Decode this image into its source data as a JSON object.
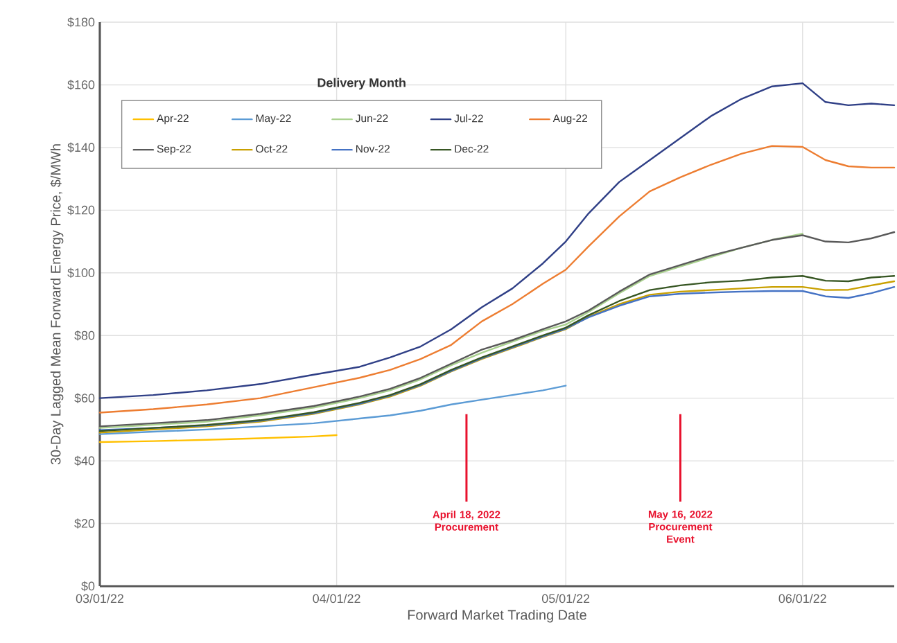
{
  "chart_data": {
    "type": "line",
    "xlabel": "Forward Market Trading Date",
    "ylabel": "30-Day Lagged Mean Forward Energy Price, $/MWh",
    "legend_title": "Delivery Month",
    "xlim": [
      "2022-03-01",
      "2022-06-13"
    ],
    "xticks": [
      {
        "value": "2022-03-01",
        "label": "03/01/22"
      },
      {
        "value": "2022-04-01",
        "label": "04/01/22"
      },
      {
        "value": "2022-05-01",
        "label": "05/01/22"
      },
      {
        "value": "2022-06-01",
        "label": "06/01/22"
      }
    ],
    "ylim": [
      0,
      180
    ],
    "yticks": [
      {
        "value": 0,
        "label": "$0"
      },
      {
        "value": 20,
        "label": "$20"
      },
      {
        "value": 40,
        "label": "$40"
      },
      {
        "value": 60,
        "label": "$60"
      },
      {
        "value": 80,
        "label": "$80"
      },
      {
        "value": 100,
        "label": "$100"
      },
      {
        "value": 120,
        "label": "$120"
      },
      {
        "value": 140,
        "label": "$140"
      },
      {
        "value": 160,
        "label": "$160"
      },
      {
        "value": 180,
        "label": "$180"
      }
    ],
    "grid": true,
    "legend": "top left",
    "x": [
      "2022-03-01",
      "2022-03-08",
      "2022-03-15",
      "2022-03-22",
      "2022-03-29",
      "2022-04-04",
      "2022-04-08",
      "2022-04-12",
      "2022-04-16",
      "2022-04-20",
      "2022-04-24",
      "2022-04-28",
      "2022-05-01",
      "2022-05-04",
      "2022-05-08",
      "2022-05-12",
      "2022-05-16",
      "2022-05-20",
      "2022-05-24",
      "2022-05-28",
      "2022-06-01",
      "2022-06-04",
      "2022-06-07",
      "2022-06-10",
      "2022-06-13"
    ],
    "series": [
      {
        "name": "Apr-22",
        "color": "#ffc000",
        "x": [
          "2022-03-01",
          "2022-03-08",
          "2022-03-15",
          "2022-03-22",
          "2022-03-29",
          "2022-04-01"
        ],
        "values": [
          46,
          46.3,
          46.7,
          47.2,
          47.8,
          48.2
        ]
      },
      {
        "name": "May-22",
        "color": "#5b9bd5",
        "x": [
          "2022-03-01",
          "2022-03-08",
          "2022-03-15",
          "2022-03-22",
          "2022-03-29",
          "2022-04-04",
          "2022-04-08",
          "2022-04-12",
          "2022-04-16",
          "2022-04-20",
          "2022-04-24",
          "2022-04-28",
          "2022-05-01"
        ],
        "values": [
          48.5,
          49.3,
          50,
          51,
          52,
          53.5,
          54.5,
          56,
          58,
          59.5,
          61,
          62.5,
          64
        ]
      },
      {
        "name": "Jun-22",
        "color": "#a9d18e",
        "x": [
          "2022-03-01",
          "2022-03-08",
          "2022-03-15",
          "2022-03-22",
          "2022-03-29",
          "2022-04-04",
          "2022-04-08",
          "2022-04-12",
          "2022-04-16",
          "2022-04-20",
          "2022-04-24",
          "2022-04-28",
          "2022-05-01",
          "2022-05-04",
          "2022-05-08",
          "2022-05-12",
          "2022-05-16",
          "2022-05-20",
          "2022-05-24",
          "2022-05-28",
          "2022-06-01"
        ],
        "values": [
          50.5,
          51.5,
          52.5,
          54.5,
          57,
          60,
          62.5,
          66,
          70.5,
          74.5,
          78,
          81.5,
          83.5,
          87.5,
          93.5,
          99,
          102,
          105,
          108,
          110.5,
          112.5
        ]
      },
      {
        "name": "Jul-22",
        "color": "#2f3f86",
        "values": [
          60,
          61,
          62.5,
          64.5,
          67.5,
          70,
          73,
          76.5,
          82,
          89,
          95,
          103,
          110,
          119,
          129,
          136,
          143,
          150,
          155.5,
          159.5,
          160.5,
          154.5,
          153.5,
          154,
          153.5
        ]
      },
      {
        "name": "Aug-22",
        "color": "#ed7d31",
        "values": [
          55.4,
          56.5,
          58,
          60,
          63.5,
          66.5,
          69,
          72.5,
          77,
          84.5,
          90,
          96.5,
          101,
          108.5,
          118,
          126,
          130.5,
          134.5,
          138,
          140.5,
          140.2,
          136,
          134,
          133.6,
          133.6
        ]
      },
      {
        "name": "Sep-22",
        "color": "#595959",
        "values": [
          51,
          52,
          53,
          55,
          57.5,
          60.5,
          63,
          66.5,
          71,
          75.5,
          78.5,
          82,
          84.5,
          88,
          94,
          99.5,
          102.5,
          105.5,
          108,
          110.5,
          112,
          110,
          109.7,
          111,
          113
        ]
      },
      {
        "name": "Oct-22",
        "color": "#c9a000",
        "values": [
          49,
          50,
          51,
          52.5,
          55,
          58,
          60.5,
          64,
          68.5,
          72.5,
          76,
          79.5,
          82,
          86,
          90,
          93,
          94,
          94.5,
          95,
          95.5,
          95.5,
          94.5,
          94.6,
          96,
          97.3
        ]
      },
      {
        "name": "Nov-22",
        "color": "#4472c4",
        "values": [
          49.8,
          50.5,
          51.3,
          52.8,
          55.2,
          58.2,
          60.8,
          64.2,
          68.7,
          72.7,
          76.2,
          79.7,
          82.2,
          85.8,
          89.5,
          92.5,
          93.3,
          93.7,
          94,
          94.2,
          94.2,
          92.5,
          92,
          93.5,
          95.5
        ]
      },
      {
        "name": "Dec-22",
        "color": "#375623",
        "values": [
          49.5,
          50.5,
          51.5,
          53,
          55.5,
          58.5,
          61,
          64.5,
          69,
          73,
          76.5,
          80,
          82.5,
          86.5,
          91,
          94.5,
          96,
          97,
          97.5,
          98.5,
          99,
          97.5,
          97.3,
          98.5,
          99
        ]
      }
    ],
    "ref_lines": [
      {
        "axis": "x",
        "value": "2022-04-18",
        "label": "April 18, 2022 Procurement",
        "color": "#e8112d"
      },
      {
        "axis": "x",
        "value": "2022-05-16",
        "label": "May 16, 2022 Procurement Event",
        "color": "#e8112d"
      }
    ]
  }
}
